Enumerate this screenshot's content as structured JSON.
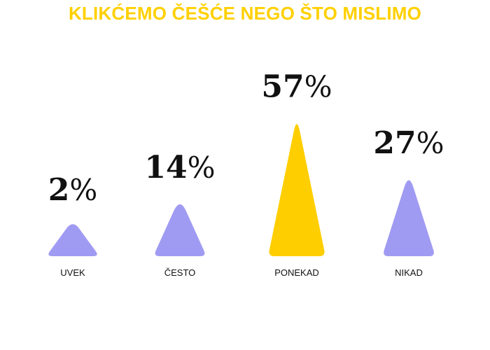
{
  "chart_data": {
    "type": "bar",
    "title": "KLIKĆEMO ČEŠĆE NEGO ŠTO MISLIMO",
    "categories": [
      "UVEK",
      "ČESTO",
      "PONEKAD",
      "NIKAD"
    ],
    "values": [
      2,
      14,
      57,
      27
    ],
    "value_labels": [
      "2%",
      "14%",
      "57%",
      "27%"
    ],
    "unit": "%",
    "highlight_category": "PONEKAD",
    "bar_shape": "rounded-triangle",
    "grid": false,
    "axes_visible": false,
    "legend": "none"
  },
  "colors": {
    "title": "#FFD000",
    "bar_default": "#A09BF2",
    "bar_highlight": "#FFCE00",
    "text": "#111111",
    "background": "#FFFFFF"
  }
}
